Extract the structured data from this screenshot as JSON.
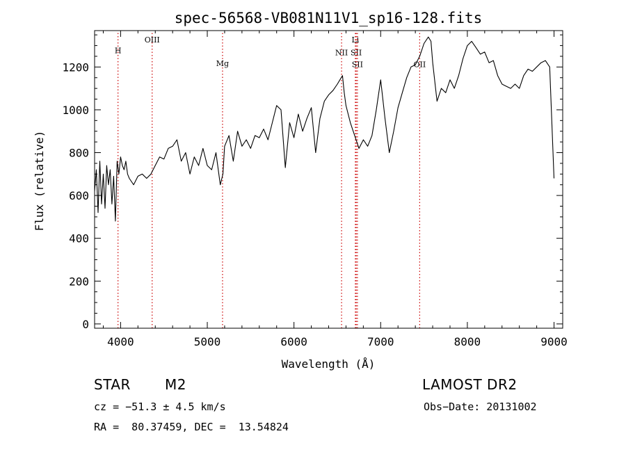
{
  "chart_data": {
    "type": "line",
    "title": "spec-56568-VB081N11V1_sp16-128.fits",
    "xlabel": "Wavelength (Å)",
    "ylabel": "Flux (relative)",
    "xlim": [
      3700,
      9100
    ],
    "ylim": [
      -20,
      1370
    ],
    "xticks": [
      4000,
      5000,
      6000,
      7000,
      8000,
      9000
    ],
    "yticks": [
      0,
      200,
      400,
      600,
      800,
      1000,
      1200
    ],
    "grid": false,
    "line_color": "#000000",
    "marker_color": "#cc0000",
    "lines": [
      {
        "label": "H",
        "x": 3970,
        "label_y": 1265
      },
      {
        "label": "OIII",
        "x": 4364,
        "label_y": 1315
      },
      {
        "label": "Mg",
        "x": 5176,
        "label_y": 1205
      },
      {
        "label": "NII",
        "x": 6549,
        "label_y": 1255
      },
      {
        "label": "Li",
        "x": 6708,
        "label_y": 1315
      },
      {
        "label": "SII",
        "x": 6718,
        "label_y": 1255
      },
      {
        "label": "SII",
        "x": 6732,
        "label_y": 1200
      },
      {
        "label": "OII",
        "x": 7450,
        "label_y": 1200
      }
    ],
    "x": [
      3700,
      3720,
      3740,
      3760,
      3780,
      3800,
      3820,
      3840,
      3860,
      3880,
      3900,
      3920,
      3940,
      3960,
      3980,
      4000,
      4020,
      4040,
      4060,
      4080,
      4100,
      4150,
      4200,
      4250,
      4300,
      4350,
      4400,
      4450,
      4500,
      4550,
      4600,
      4650,
      4700,
      4750,
      4800,
      4850,
      4900,
      4950,
      5000,
      5050,
      5100,
      5150,
      5180,
      5200,
      5250,
      5300,
      5350,
      5400,
      5450,
      5500,
      5550,
      5600,
      5650,
      5700,
      5750,
      5800,
      5850,
      5900,
      5950,
      6000,
      6050,
      6100,
      6150,
      6200,
      6250,
      6300,
      6350,
      6400,
      6450,
      6500,
      6530,
      6560,
      6580,
      6600,
      6650,
      6700,
      6750,
      6800,
      6850,
      6900,
      6950,
      7000,
      7050,
      7100,
      7150,
      7200,
      7250,
      7300,
      7350,
      7400,
      7450,
      7500,
      7550,
      7580,
      7600,
      7650,
      7700,
      7750,
      7800,
      7850,
      7900,
      7950,
      8000,
      8050,
      8100,
      8150,
      8200,
      8250,
      8300,
      8350,
      8400,
      8450,
      8500,
      8550,
      8600,
      8650,
      8700,
      8750,
      8800,
      8850,
      8900,
      8950,
      9000
    ],
    "y": [
      620,
      720,
      520,
      760,
      560,
      700,
      540,
      740,
      650,
      720,
      560,
      690,
      480,
      760,
      700,
      780,
      740,
      720,
      760,
      700,
      680,
      650,
      690,
      700,
      680,
      700,
      740,
      780,
      770,
      820,
      830,
      860,
      760,
      800,
      700,
      780,
      740,
      820,
      740,
      720,
      800,
      650,
      700,
      830,
      880,
      760,
      900,
      830,
      860,
      820,
      880,
      870,
      910,
      860,
      940,
      1020,
      1000,
      730,
      940,
      870,
      980,
      900,
      960,
      1010,
      800,
      960,
      1040,
      1070,
      1090,
      1120,
      1140,
      1160,
      1080,
      1020,
      940,
      880,
      820,
      860,
      830,
      880,
      1000,
      1140,
      960,
      800,
      900,
      1010,
      1080,
      1150,
      1200,
      1210,
      1250,
      1310,
      1340,
      1320,
      1220,
      1040,
      1100,
      1080,
      1140,
      1100,
      1160,
      1240,
      1300,
      1320,
      1290,
      1260,
      1270,
      1220,
      1230,
      1160,
      1120,
      1110,
      1100,
      1120,
      1100,
      1160,
      1190,
      1180,
      1200,
      1220,
      1230,
      1200,
      680
    ]
  },
  "info": {
    "object_class": "STAR",
    "subclass": "M2",
    "survey": "LAMOST DR2",
    "cz": "cz = −51.3 ± 4.5 km/s",
    "obs_date": "Obs−Date: 20131002",
    "coords": "RA =  80.37459, DEC =  13.54824"
  }
}
